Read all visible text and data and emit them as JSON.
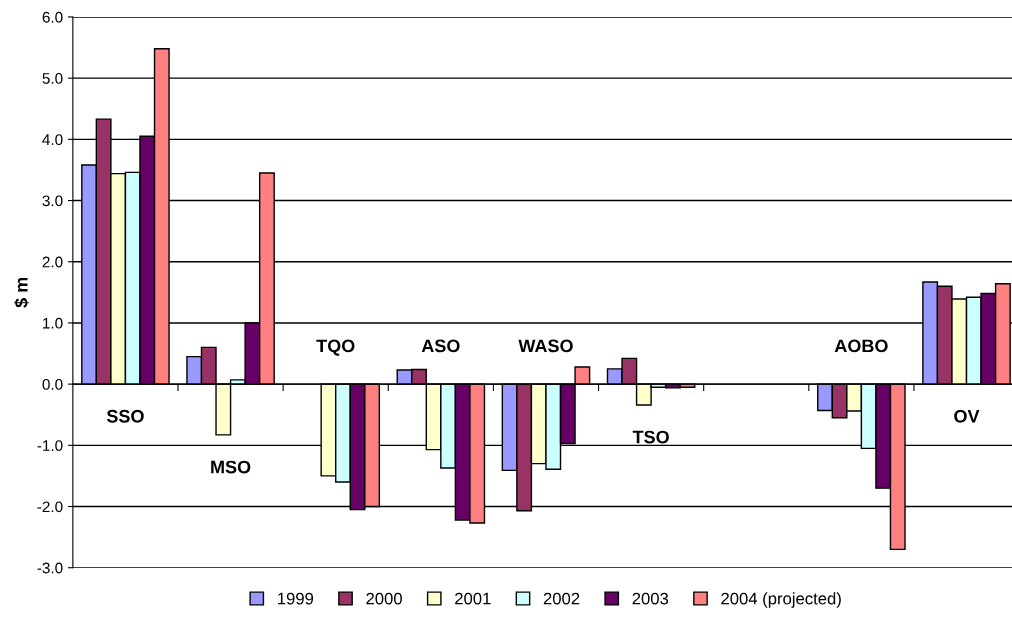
{
  "chart_data": {
    "type": "bar",
    "ylabel": "$ m",
    "categories": [
      "SSO",
      "MSO",
      "TQO",
      "ASO",
      "WASO",
      "TSO",
      null,
      "AOBO",
      "OV"
    ],
    "series": [
      {
        "name": "1999",
        "color": "#9999ff",
        "values": [
          3.58,
          0.45,
          null,
          0.23,
          -1.41,
          0.25,
          null,
          -0.43,
          1.67
        ]
      },
      {
        "name": "2000",
        "color": "#993366",
        "values": [
          4.33,
          0.6,
          null,
          0.24,
          -2.07,
          0.42,
          null,
          -0.55,
          1.6
        ]
      },
      {
        "name": "2001",
        "color": "#ffffcc",
        "values": [
          3.44,
          -0.83,
          -1.5,
          -1.07,
          -1.3,
          -0.34,
          null,
          -0.44,
          1.39
        ]
      },
      {
        "name": "2002",
        "color": "#ccffff",
        "values": [
          3.46,
          0.07,
          -1.6,
          -1.37,
          -1.39,
          -0.05,
          null,
          -1.05,
          1.42
        ]
      },
      {
        "name": "2003",
        "color": "#660066",
        "values": [
          4.05,
          1.0,
          -2.05,
          -2.22,
          -0.97,
          -0.06,
          null,
          -1.7,
          1.48
        ]
      },
      {
        "name": "2004 (projected)",
        "color": "#ff8080",
        "values": [
          5.48,
          3.45,
          -2.0,
          -2.27,
          0.28,
          -0.05,
          null,
          -2.7,
          1.64
        ]
      }
    ],
    "ylim": [
      -3.0,
      6.0
    ],
    "yticks": [
      {
        "value": -3.0,
        "label": "-3.0"
      },
      {
        "value": -2.0,
        "label": "-2.0"
      },
      {
        "value": -1.0,
        "label": "-1.0"
      },
      {
        "value": 0.0,
        "label": "0.0"
      },
      {
        "value": 1.0,
        "label": "1.0"
      },
      {
        "value": 2.0,
        "label": "2.0"
      },
      {
        "value": 3.0,
        "label": "3.0"
      },
      {
        "value": 4.0,
        "label": "4.0"
      },
      {
        "value": 5.0,
        "label": "5.0"
      },
      {
        "value": 6.0,
        "label": "6.0"
      }
    ],
    "grid": "y",
    "legend": "bottom"
  }
}
